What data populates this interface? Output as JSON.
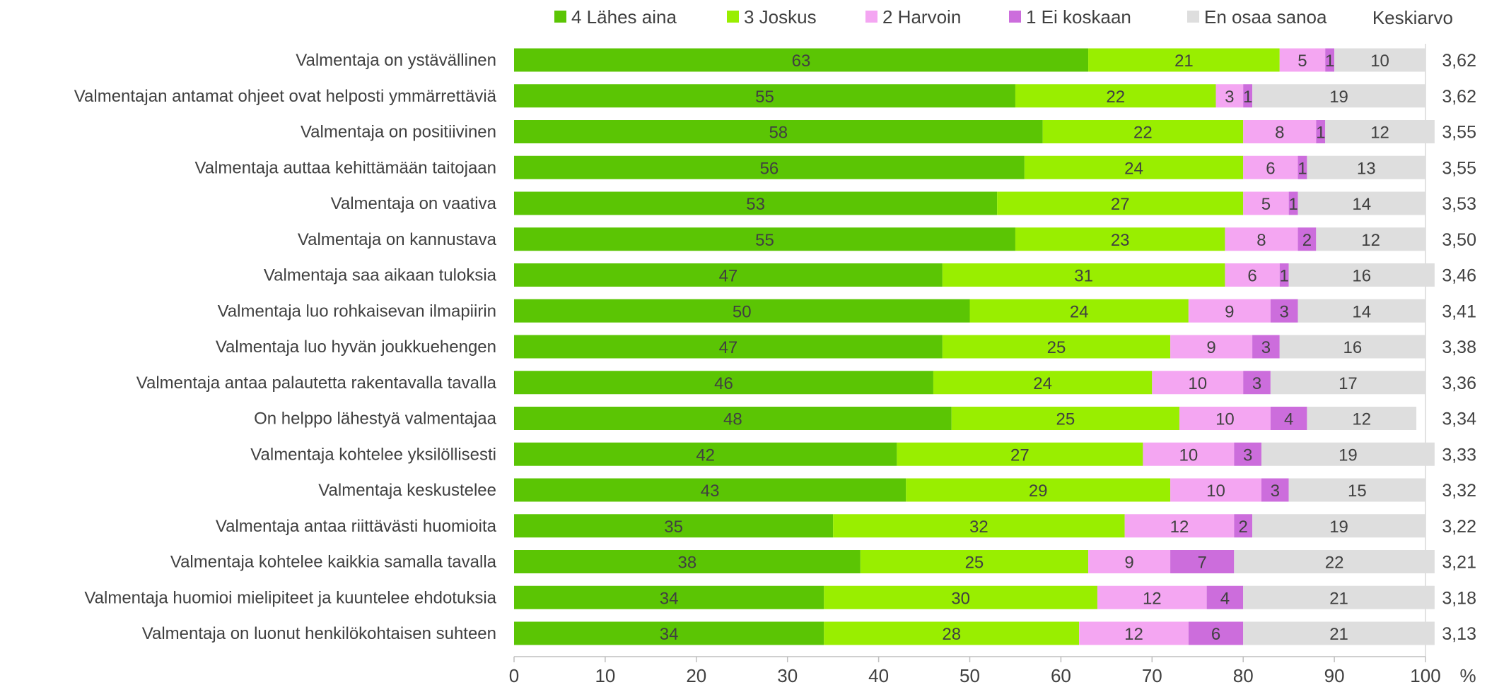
{
  "chart_data": {
    "type": "bar",
    "orientation": "horizontal",
    "stacked": true,
    "title": "",
    "xlabel": "",
    "x_unit": "%",
    "xlim": [
      0,
      100
    ],
    "xticks": [
      0,
      10,
      20,
      30,
      40,
      50,
      60,
      70,
      80,
      90,
      100
    ],
    "mean_header": "Keskiarvo",
    "legend_position": "top",
    "categories": [
      "Valmentaja on ystävällinen",
      "Valmentajan antamat ohjeet ovat helposti ymmärrettäviä",
      "Valmentaja on positiivinen",
      "Valmentaja auttaa kehittämään taitojaan",
      "Valmentaja on vaativa",
      "Valmentaja on kannustava",
      "Valmentaja saa aikaan tuloksia",
      "Valmentaja luo rohkaisevan ilmapiirin",
      "Valmentaja luo hyvän joukkuehengen",
      "Valmentaja antaa palautetta rakentavalla tavalla",
      "On helppo lähestyä valmentajaa",
      "Valmentaja kohtelee yksilöllisesti",
      "Valmentaja keskustelee",
      "Valmentaja antaa riittävästi huomioita",
      "Valmentaja kohtelee kaikkia samalla tavalla",
      "Valmentaja huomioi mielipiteet ja kuuntelee ehdotuksia",
      "Valmentaja on luonut henkilökohtaisen suhteen"
    ],
    "series": [
      {
        "name": "4 Lähes aina",
        "color": "#5BC504",
        "values": [
          63,
          55,
          58,
          56,
          53,
          55,
          47,
          50,
          47,
          46,
          48,
          42,
          43,
          35,
          38,
          34,
          34
        ]
      },
      {
        "name": "3 Joskus",
        "color": "#99EE00",
        "values": [
          21,
          22,
          22,
          24,
          27,
          23,
          31,
          24,
          25,
          24,
          25,
          27,
          29,
          32,
          25,
          30,
          28
        ]
      },
      {
        "name": "2 Harvoin",
        "color": "#F4A6F2",
        "values": [
          5,
          3,
          8,
          6,
          5,
          8,
          6,
          9,
          9,
          10,
          10,
          10,
          10,
          12,
          9,
          12,
          12
        ]
      },
      {
        "name": "1 Ei koskaan",
        "color": "#CC6DDC",
        "values": [
          1,
          1,
          1,
          1,
          1,
          2,
          1,
          3,
          3,
          3,
          4,
          3,
          3,
          2,
          7,
          4,
          6
        ]
      },
      {
        "name": "En osaa sanoa",
        "color": "#DEDEDE",
        "values": [
          10,
          19,
          12,
          13,
          14,
          12,
          16,
          14,
          16,
          17,
          12,
          19,
          15,
          19,
          22,
          21,
          21
        ]
      }
    ],
    "means": [
      "3,62",
      "3,62",
      "3,55",
      "3,55",
      "3,53",
      "3,50",
      "3,46",
      "3,41",
      "3,38",
      "3,36",
      "3,34",
      "3,33",
      "3,32",
      "3,22",
      "3,21",
      "3,18",
      "3,13"
    ]
  }
}
